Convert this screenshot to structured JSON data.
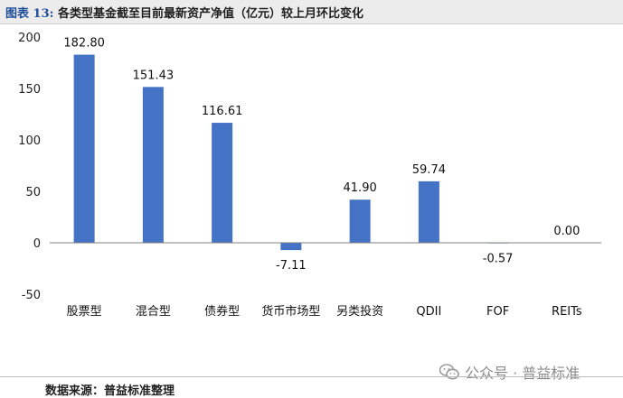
{
  "header": {
    "prefix": "图表 13:",
    "title": "各类型基金截至目前最新资产净值（亿元）较上月环比变化"
  },
  "footer": {
    "source": "数据来源：普益标准整理"
  },
  "watermark": {
    "text": "公众号 · 普益标准",
    "icon": "wechat-icon"
  },
  "chart_data": {
    "type": "bar",
    "title": "各类型基金截至目前最新资产净值（亿元）较上月环比变化",
    "categories": [
      "股票型",
      "混合型",
      "债券型",
      "货币市场型",
      "另类投资",
      "QDII",
      "FOF",
      "REITs"
    ],
    "values": [
      182.8,
      151.43,
      116.61,
      -7.11,
      41.9,
      59.74,
      -0.57,
      0.0
    ],
    "data_labels": [
      "182.80",
      "151.43",
      "116.61",
      "-7.11",
      "41.90",
      "59.74",
      "-0.57",
      "0.00"
    ],
    "ylim": [
      -50,
      200
    ],
    "yticks": [
      200,
      150,
      100,
      50,
      0,
      -50
    ],
    "xlabel": "",
    "ylabel": "",
    "grid": false,
    "legend": "none",
    "bar_color": "#4472c4",
    "axis_color": "#7f7f7f"
  }
}
